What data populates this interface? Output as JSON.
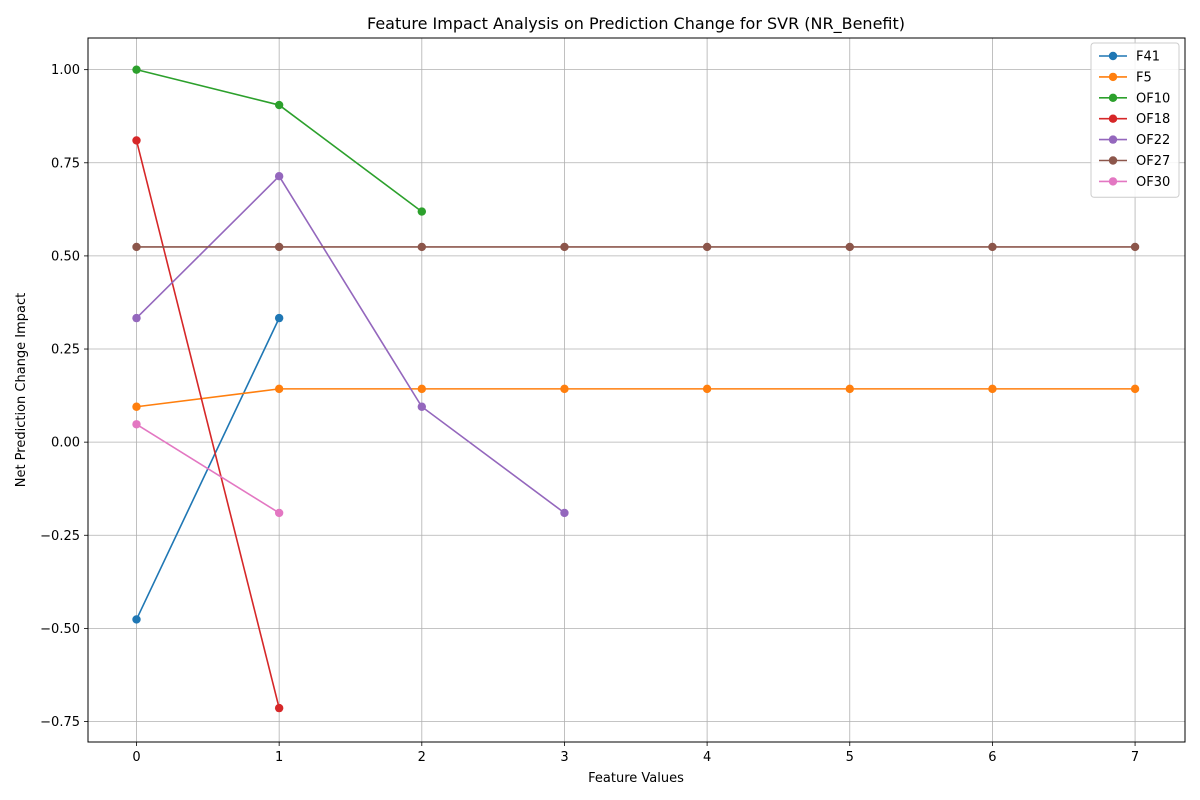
{
  "chart_data": {
    "type": "line",
    "title": "Feature Impact Analysis on Prediction Change for SVR (NR_Benefit)",
    "xlabel": "Feature Values",
    "ylabel": "Net Prediction Change Impact",
    "xlim": [
      -0.34,
      7.35
    ],
    "ylim": [
      -0.805,
      1.085
    ],
    "xticks": [
      0,
      1,
      2,
      3,
      4,
      5,
      6,
      7
    ],
    "xtick_labels": [
      "0",
      "1",
      "2",
      "3",
      "4",
      "5",
      "6",
      "7"
    ],
    "yticks": [
      -0.75,
      -0.5,
      -0.25,
      0.0,
      0.25,
      0.5,
      0.75,
      1.0
    ],
    "ytick_labels": [
      "−0.75",
      "−0.50",
      "−0.25",
      "0.00",
      "0.25",
      "0.50",
      "0.75",
      "1.00"
    ],
    "grid": true,
    "legend_position": "top-right",
    "series": [
      {
        "name": "F41",
        "color": "#1f77b4",
        "x": [
          0,
          1
        ],
        "y": [
          -0.476,
          0.333
        ]
      },
      {
        "name": "F5",
        "color": "#ff7f0e",
        "x": [
          0,
          1,
          2,
          3,
          4,
          5,
          6,
          7
        ],
        "y": [
          0.095,
          0.143,
          0.143,
          0.143,
          0.143,
          0.143,
          0.143,
          0.143
        ]
      },
      {
        "name": "OF10",
        "color": "#2ca02c",
        "x": [
          0,
          1,
          2
        ],
        "y": [
          1.0,
          0.905,
          0.619
        ]
      },
      {
        "name": "OF18",
        "color": "#d62728",
        "x": [
          0,
          1
        ],
        "y": [
          0.81,
          -0.714
        ]
      },
      {
        "name": "OF22",
        "color": "#9467bd",
        "x": [
          0,
          1,
          2,
          3
        ],
        "y": [
          0.333,
          0.714,
          0.095,
          -0.19
        ]
      },
      {
        "name": "OF27",
        "color": "#8c564b",
        "x": [
          0,
          1,
          2,
          3,
          4,
          5,
          6,
          7
        ],
        "y": [
          0.524,
          0.524,
          0.524,
          0.524,
          0.524,
          0.524,
          0.524,
          0.524
        ]
      },
      {
        "name": "OF30",
        "color": "#e377c2",
        "x": [
          0,
          1
        ],
        "y": [
          0.048,
          -0.19
        ]
      }
    ]
  }
}
